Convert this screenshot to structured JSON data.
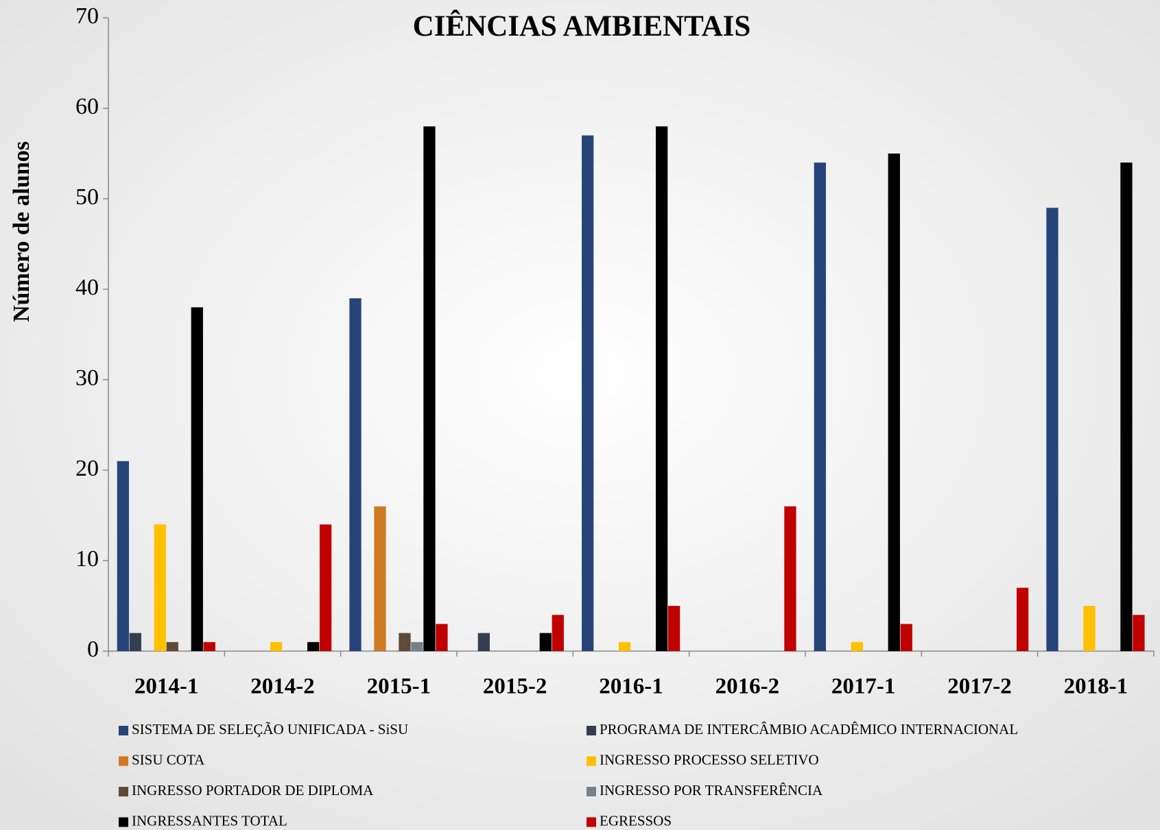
{
  "chart_data": {
    "type": "bar",
    "title": "CIÊNCIAS AMBIENTAIS",
    "y_label": "Número de alunos",
    "categories": [
      "2014-1",
      "2014-2",
      "2015-1",
      "2015-2",
      "2016-1",
      "2016-2",
      "2017-1",
      "2017-2",
      "2018-1"
    ],
    "series": [
      {
        "name": "SISTEMA DE SELEÇÃO UNIFICADA - SiSU",
        "color": "#264478",
        "values": [
          21,
          0,
          39,
          0,
          57,
          0,
          54,
          0,
          49
        ]
      },
      {
        "name": "PROGRAMA DE INTERCÂMBIO ACADÊMICO INTERNACIONAL",
        "color": "#333f50",
        "values": [
          2,
          0,
          0,
          2,
          0,
          0,
          0,
          0,
          0
        ]
      },
      {
        "name": "SISU COTA",
        "color": "#d07a24",
        "values": [
          0,
          0,
          16,
          0,
          0,
          0,
          0,
          0,
          0
        ]
      },
      {
        "name": "INGRESSO PROCESSO SELETIVO",
        "color": "#ffc000",
        "values": [
          14,
          1,
          0,
          0,
          1,
          0,
          1,
          0,
          5
        ]
      },
      {
        "name": "INGRESSO PORTADOR DE DIPLOMA",
        "color": "#5e4a38",
        "values": [
          1,
          0,
          2,
          0,
          0,
          0,
          0,
          0,
          0
        ]
      },
      {
        "name": "INGRESSO POR TRANSFERÊNCIA",
        "color": "#75828c",
        "values": [
          0,
          0,
          1,
          0,
          0,
          0,
          0,
          0,
          0
        ]
      },
      {
        "name": "INGRESSANTES TOTAL",
        "color": "#000000",
        "values": [
          38,
          1,
          58,
          2,
          58,
          0,
          55,
          0,
          54
        ]
      },
      {
        "name": "EGRESSOS",
        "color": "#c00000",
        "values": [
          1,
          14,
          3,
          4,
          5,
          16,
          3,
          7,
          4
        ]
      }
    ],
    "ylim": [
      0,
      70
    ],
    "yticks": [
      0,
      10,
      20,
      30,
      40,
      50,
      60,
      70
    ],
    "grid": false,
    "legend": "bottom"
  }
}
